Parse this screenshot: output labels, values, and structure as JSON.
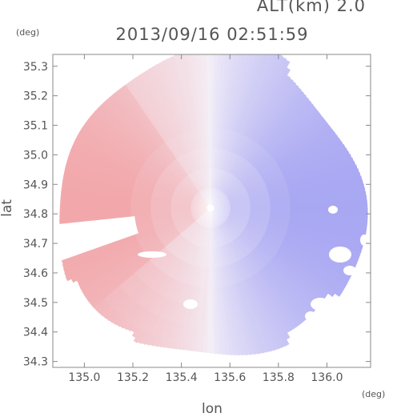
{
  "header": {
    "altitude": "ALT(km) 2.0",
    "timestamp": "2013/09/16 02:51:59",
    "y_unit": "(deg)",
    "x_unit": "(deg)"
  },
  "chart_data": {
    "type": "heatmap",
    "xlabel": "lon",
    "ylabel": "lat",
    "xlim": [
      134.87,
      136.18
    ],
    "ylim": [
      34.28,
      35.34
    ],
    "x_ticks": [
      {
        "value": 135.0,
        "label": "135.0"
      },
      {
        "value": 135.2,
        "label": "135.2"
      },
      {
        "value": 135.4,
        "label": "135.4"
      },
      {
        "value": 135.6,
        "label": "135.6"
      },
      {
        "value": 135.8,
        "label": "135.8"
      },
      {
        "value": 136.0,
        "label": "136.0"
      }
    ],
    "y_ticks": [
      {
        "value": 34.3,
        "label": "34.3"
      },
      {
        "value": 34.4,
        "label": "34.4"
      },
      {
        "value": 34.5,
        "label": "34.5"
      },
      {
        "value": 34.6,
        "label": "34.6"
      },
      {
        "value": 34.7,
        "label": "34.7"
      },
      {
        "value": 34.8,
        "label": "34.8"
      },
      {
        "value": 34.9,
        "label": "34.9"
      },
      {
        "value": 35.0,
        "label": "35.0"
      },
      {
        "value": 35.1,
        "label": "35.1"
      },
      {
        "value": 35.2,
        "label": "35.2"
      },
      {
        "value": 35.3,
        "label": "35.3"
      }
    ],
    "radar_center": {
      "lon": 135.52,
      "lat": 34.82
    },
    "colors": {
      "approaching": "#7b7bef",
      "receding": "#f07c7c",
      "near_zero": "#f4f0f8",
      "axis": "#888888",
      "text": "#555555"
    }
  }
}
